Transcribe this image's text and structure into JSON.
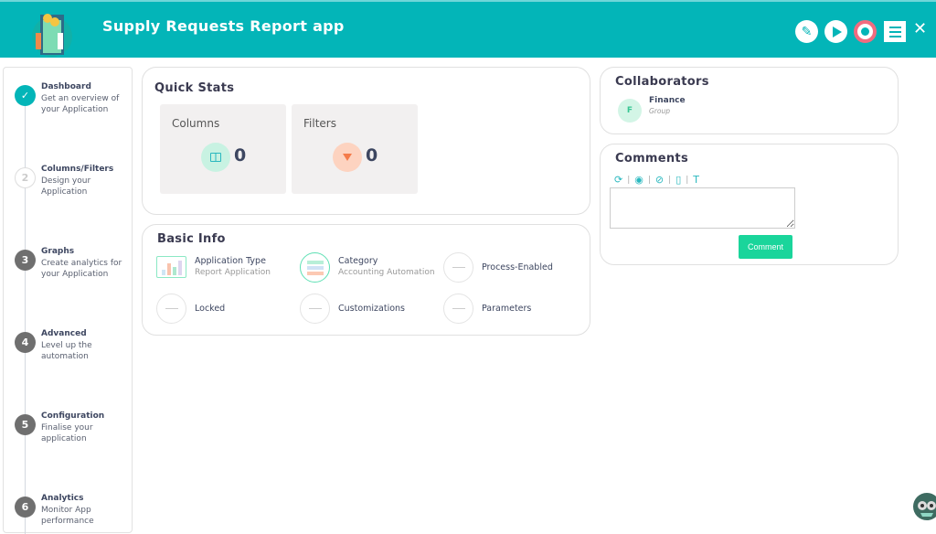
{
  "header": {
    "title": "Supply Requests Report app",
    "icons": [
      "pencil-icon",
      "play-icon",
      "megaphone-icon",
      "menu-icon",
      "close-icon"
    ],
    "close_glyph": "✕",
    "accent": "#03b5b8"
  },
  "steps": [
    {
      "num": "✓",
      "title": "Dashboard",
      "desc": "Get an overview of your Application",
      "state": "done"
    },
    {
      "num": "2",
      "title": "Columns/Filters",
      "desc": "Design your Application",
      "state": "pending"
    },
    {
      "num": "3",
      "title": "Graphs",
      "desc": "Create analytics for your Application",
      "state": "locked"
    },
    {
      "num": "4",
      "title": "Advanced",
      "desc": "Level up the automation",
      "state": "locked"
    },
    {
      "num": "5",
      "title": "Configuration",
      "desc": "Finalise your application",
      "state": "locked"
    },
    {
      "num": "6",
      "title": "Analytics",
      "desc": "Monitor App performance",
      "state": "locked"
    }
  ],
  "quick_stats": {
    "title": "Quick Stats",
    "columns": {
      "label": "Columns",
      "value": "0"
    },
    "filters": {
      "label": "Filters",
      "value": "0"
    }
  },
  "basic_info": {
    "title": "Basic Info",
    "app_type": {
      "label": "Application Type",
      "value": "Report Application"
    },
    "category": {
      "label": "Category",
      "value": "Accounting Automation"
    },
    "process": "Process-Enabled",
    "locked": "Locked",
    "custom": "Customizations",
    "params": "Parameters"
  },
  "collaborators": {
    "title": "Collaborators",
    "items": [
      {
        "initial": "F",
        "name": "Finance",
        "type": "Group"
      }
    ]
  },
  "comments": {
    "title": "Comments",
    "button": "Comment",
    "placeholder": ""
  }
}
